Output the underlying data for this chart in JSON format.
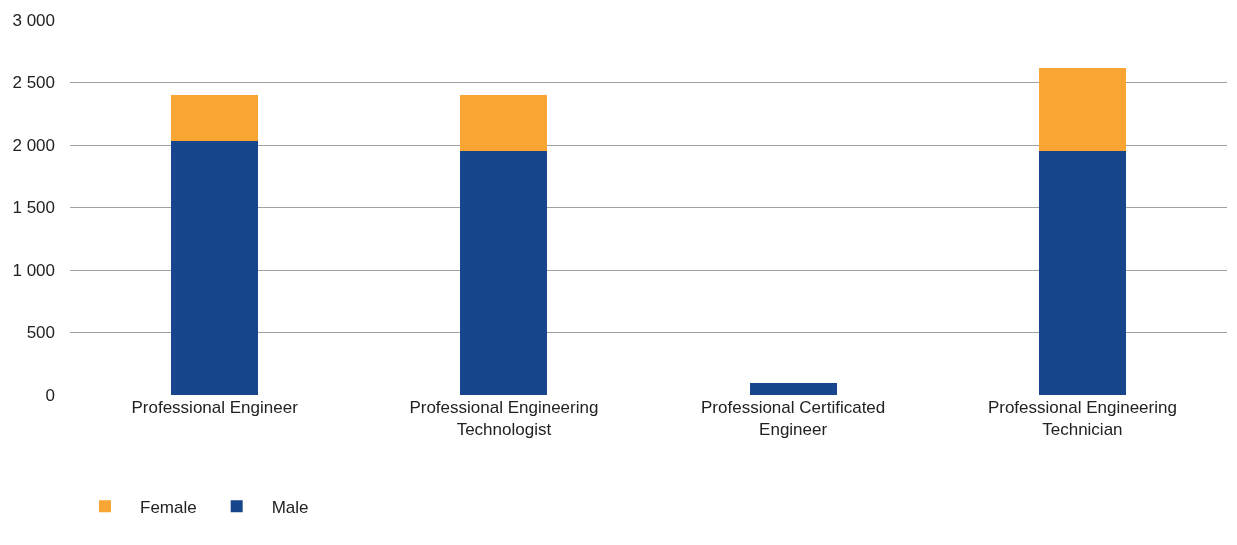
{
  "chart_data": {
    "type": "bar",
    "stacked": true,
    "categories": [
      "Professional Engineer",
      "Professional Engineering Technologist",
      "Professional Certificated Engineer",
      "Professional Engineering Technician"
    ],
    "series": [
      {
        "name": "Male",
        "color": "#18468c",
        "values": [
          2030,
          1950,
          100,
          1950
        ]
      },
      {
        "name": "Female",
        "color": "#f8a533",
        "values": [
          370,
          450,
          0,
          670
        ]
      }
    ],
    "ylim": [
      0,
      3000
    ],
    "yticks": [
      {
        "value": 0,
        "label": "0"
      },
      {
        "value": 500,
        "label": "500"
      },
      {
        "value": 1000,
        "label": "1 000"
      },
      {
        "value": 1500,
        "label": "1 500"
      },
      {
        "value": 2000,
        "label": "2 000"
      },
      {
        "value": 2500,
        "label": "2 500"
      },
      {
        "value": 3000,
        "label": "3 000"
      }
    ],
    "grid": "y",
    "legend": "bottom left"
  }
}
